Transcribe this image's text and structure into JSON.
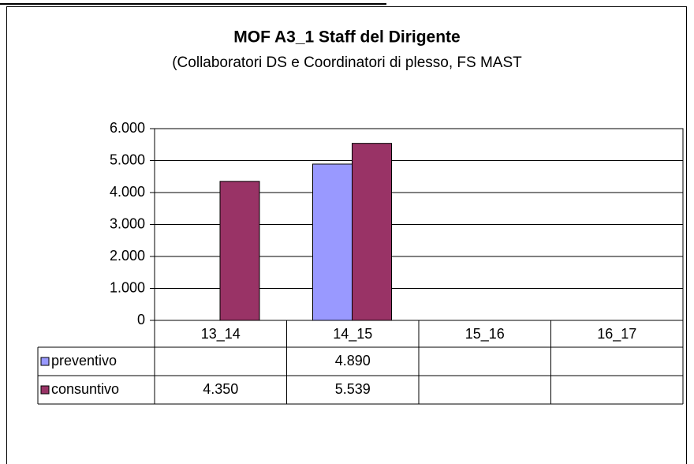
{
  "chart_data": {
    "type": "bar",
    "title": "MOF A3_1 Staff del Dirigente",
    "subtitle": "(Collaboratori DS e Coordinatori di plesso, FS MAST",
    "categories": [
      "13_14",
      "14_15",
      "15_16",
      "16_17"
    ],
    "series": [
      {
        "name": "preventivo",
        "color": "#9999ff",
        "values": [
          null,
          4890,
          null,
          null
        ],
        "value_labels": [
          null,
          "4.890",
          null,
          null
        ]
      },
      {
        "name": "consuntivo",
        "color": "#993366",
        "values": [
          4350,
          5539,
          null,
          null
        ],
        "value_labels": [
          "4.350",
          "5.539",
          null,
          null
        ]
      }
    ],
    "ylim": [
      0,
      6000
    ],
    "yticks": [
      0,
      {
        "value": 1000,
        "label": "1.000"
      },
      {
        "value": 2000,
        "label": "2.000"
      },
      {
        "value": 3000,
        "label": "3.000"
      },
      {
        "value": 4000,
        "label": "4.000"
      },
      {
        "value": 5000,
        "label": "5.000"
      },
      {
        "value": 6000,
        "label": "6.000"
      }
    ],
    "grid": true
  }
}
